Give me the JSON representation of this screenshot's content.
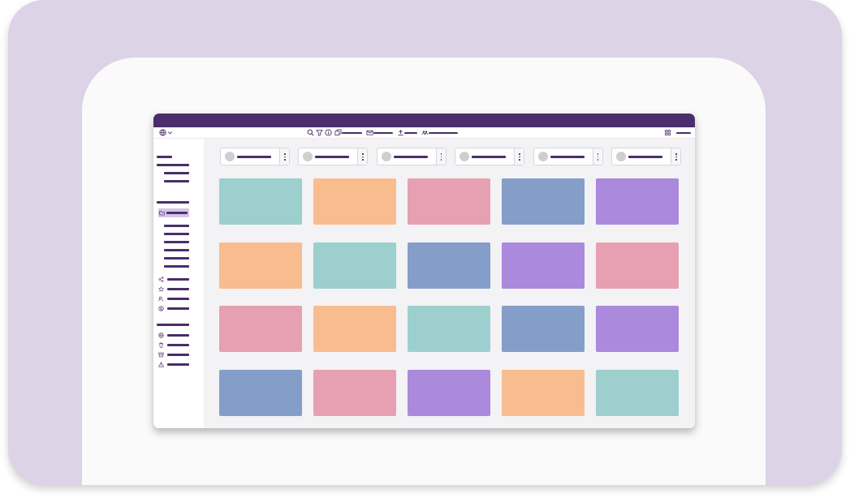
{
  "palette": {
    "outer_background": "#dcd3e7",
    "panel_background": "#fafafa",
    "titlebar": "#4a2d6a",
    "accent": "#4a2d6a",
    "sidebar_active": "#d4c5e5",
    "content_background": "#f3f2f4",
    "teal": "#9dcfcf",
    "peach": "#f9bc8f",
    "pink": "#e6a0b1",
    "blue": "#849ec9",
    "purple": "#ab89dc"
  },
  "toolbar": {
    "left_icons": [
      "globe-icon",
      "chevron-down-icon"
    ],
    "center_icons": [
      "search-icon",
      "filter-icon",
      "info-icon",
      "copy-icon",
      "mail-icon",
      "upload-icon",
      "users-icon"
    ],
    "right_icons": [
      "grid-view-icon"
    ]
  },
  "sidebar": {
    "section_icons": [
      "share-icon",
      "star-icon",
      "user-search-icon",
      "circle-user-icon"
    ],
    "bottom_icons": [
      "globe-icon",
      "trash-icon",
      "archive-icon",
      "warning-icon"
    ],
    "active_item_icon": "folder-icon"
  },
  "filters": {
    "count": 6,
    "chip_icons": [
      "avatar-icon",
      "more-vertical-icon"
    ]
  },
  "grid": {
    "rows": [
      [
        "teal",
        "peach",
        "pink",
        "blue",
        "purple"
      ],
      [
        "peach",
        "teal",
        "blue",
        "purple",
        "pink"
      ],
      [
        "pink",
        "peach",
        "teal",
        "blue",
        "purple"
      ],
      [
        "blue",
        "pink",
        "purple",
        "peach",
        "teal"
      ]
    ]
  }
}
